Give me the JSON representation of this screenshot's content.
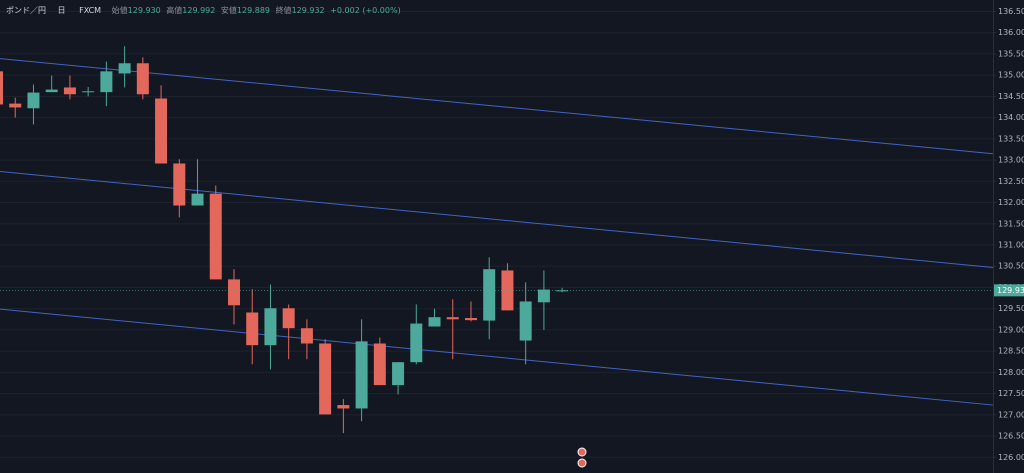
{
  "chart_data": {
    "type": "candlestick",
    "symbol": "ポンド／円",
    "interval": "日",
    "source": "FXCM",
    "ohlc_names": [
      "始値",
      "高値",
      "安値",
      "終値"
    ],
    "ohlc_values": [
      129.93,
      129.992,
      129.889,
      129.932
    ],
    "ohlc_value_labels": [
      "129.930",
      "129.992",
      "129.889",
      "129.932"
    ],
    "change_label": "+0.002 (+0.00%)",
    "last_price": {
      "value": 129.932,
      "label": "129.932"
    },
    "categories": [
      null,
      null,
      null,
      null,
      null,
      null,
      null,
      null,
      null,
      null,
      null,
      null,
      null,
      null,
      null,
      null,
      null,
      null,
      null,
      null,
      null,
      null,
      null,
      null,
      null,
      null,
      null,
      null,
      null,
      null,
      null,
      null
    ],
    "open": [
      135.09,
      134.33,
      134.22,
      134.6,
      134.71,
      134.6,
      134.6,
      135.04,
      135.28,
      134.45,
      132.92,
      131.93,
      132.21,
      130.19,
      129.41,
      128.64,
      129.51,
      129.04,
      128.68,
      127.23,
      127.15,
      128.68,
      127.7,
      128.24,
      129.08,
      129.3,
      129.28,
      129.22,
      130.4,
      128.75,
      129.65,
      129.93
    ],
    "high": [
      135.2,
      134.47,
      134.78,
      134.99,
      134.99,
      134.72,
      135.32,
      135.68,
      135.42,
      134.76,
      133.02,
      133.02,
      132.4,
      130.43,
      129.96,
      130.07,
      129.6,
      129.25,
      128.78,
      127.37,
      129.25,
      128.82,
      128.24,
      129.6,
      129.5,
      129.72,
      129.67,
      130.71,
      130.57,
      130.12,
      130.4,
      129.992
    ],
    "low": [
      134.2,
      134.0,
      133.84,
      134.6,
      134.43,
      134.5,
      134.27,
      134.71,
      134.43,
      132.92,
      131.65,
      131.93,
      130.19,
      129.13,
      128.19,
      128.07,
      128.31,
      128.31,
      127.01,
      126.57,
      126.85,
      127.7,
      127.48,
      128.19,
      129.08,
      128.31,
      129.2,
      128.78,
      129.46,
      128.19,
      129.0,
      129.889
    ],
    "close": [
      134.31,
      134.24,
      134.59,
      134.66,
      134.55,
      134.62,
      135.09,
      135.28,
      134.55,
      132.92,
      131.93,
      132.21,
      130.19,
      129.58,
      128.64,
      129.51,
      129.04,
      128.68,
      127.01,
      127.15,
      128.73,
      127.7,
      128.24,
      129.15,
      129.3,
      129.25,
      129.23,
      130.43,
      129.46,
      129.67,
      129.95,
      129.932
    ],
    "up_color": "#4ca99b",
    "down_color": "#e4675c",
    "trendlines": [
      {
        "start": 135.39,
        "end": 133.15
      },
      {
        "start": 132.73,
        "end": 130.47
      },
      {
        "start": 129.49,
        "end": 127.23
      }
    ],
    "trendline_color": "#4463c4",
    "ylim": [
      125.63,
      136.77
    ],
    "yticks": [
      {
        "value": 126,
        "label": "126.000"
      },
      {
        "value": 126.5,
        "label": "126.500"
      },
      {
        "value": 127,
        "label": "127.000"
      },
      {
        "value": 127.5,
        "label": "127.500"
      },
      {
        "value": 128,
        "label": "128.000"
      },
      {
        "value": 128.5,
        "label": "128.500"
      },
      {
        "value": 129,
        "label": "129.000"
      },
      {
        "value": 129.5,
        "label": "129.500"
      },
      {
        "value": 130,
        "label": "130.000"
      },
      {
        "value": 130.5,
        "label": "130.500"
      },
      {
        "value": 131,
        "label": "131.000"
      },
      {
        "value": 131.5,
        "label": "131.500"
      },
      {
        "value": 132,
        "label": "132.000"
      },
      {
        "value": 132.5,
        "label": "132.500"
      },
      {
        "value": 133,
        "label": "133.000"
      },
      {
        "value": 133.5,
        "label": "133.500"
      },
      {
        "value": 134,
        "label": "134.000"
      },
      {
        "value": 134.5,
        "label": "134.500"
      },
      {
        "value": 135,
        "label": "135.000"
      },
      {
        "value": 135.5,
        "label": "135.500"
      },
      {
        "value": 136,
        "label": "136.000"
      },
      {
        "value": 136.5,
        "label": "136.500"
      }
    ],
    "grid": true
  }
}
